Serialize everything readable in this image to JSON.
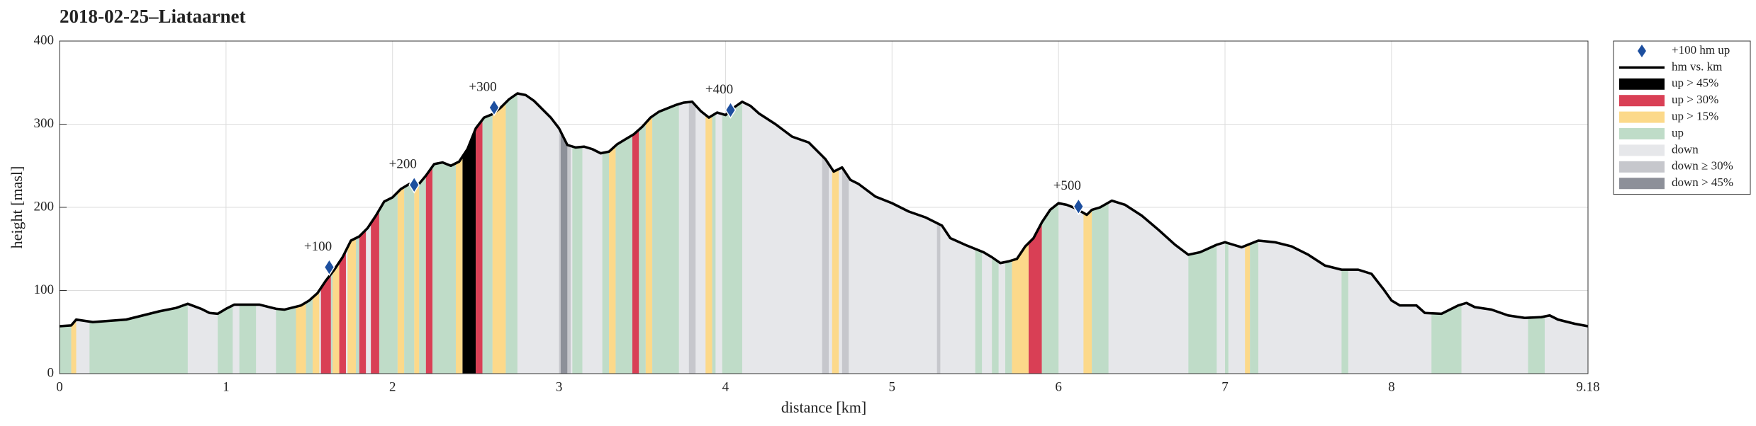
{
  "chart_data": {
    "type": "line",
    "title": "2018-02-25–Liataarnet",
    "xlabel": "distance [km]",
    "ylabel": "height [masl]",
    "xlim": [
      0,
      9.18
    ],
    "ylim": [
      0,
      400
    ],
    "xticks": [
      0,
      1,
      2,
      3,
      4,
      5,
      6,
      7,
      8,
      9.18
    ],
    "yticks": [
      0,
      100,
      200,
      300,
      400
    ],
    "grid": true,
    "legend": "outside-right",
    "line_name": "hm vs. km",
    "line_color": "#000000",
    "x": [
      0,
      0.07,
      0.1,
      0.2,
      0.4,
      0.5,
      0.6,
      0.7,
      0.77,
      0.85,
      0.9,
      0.95,
      1.0,
      1.05,
      1.15,
      1.2,
      1.3,
      1.35,
      1.45,
      1.5,
      1.55,
      1.6,
      1.65,
      1.7,
      1.75,
      1.8,
      1.85,
      1.9,
      1.95,
      2.0,
      2.05,
      2.1,
      2.15,
      2.2,
      2.25,
      2.3,
      2.35,
      2.4,
      2.45,
      2.5,
      2.55,
      2.6,
      2.65,
      2.7,
      2.75,
      2.8,
      2.85,
      2.9,
      2.95,
      3.0,
      3.05,
      3.1,
      3.15,
      3.2,
      3.25,
      3.3,
      3.35,
      3.4,
      3.45,
      3.5,
      3.55,
      3.6,
      3.7,
      3.75,
      3.8,
      3.85,
      3.9,
      3.95,
      4.0,
      4.05,
      4.1,
      4.15,
      4.2,
      4.3,
      4.4,
      4.5,
      4.6,
      4.65,
      4.7,
      4.75,
      4.8,
      4.9,
      5.0,
      5.1,
      5.2,
      5.3,
      5.35,
      5.45,
      5.55,
      5.6,
      5.65,
      5.7,
      5.75,
      5.8,
      5.85,
      5.9,
      5.95,
      6.0,
      6.05,
      6.1,
      6.17,
      6.2,
      6.25,
      6.32,
      6.4,
      6.5,
      6.6,
      6.7,
      6.78,
      6.85,
      6.95,
      7.0,
      7.05,
      7.1,
      7.2,
      7.3,
      7.4,
      7.5,
      7.6,
      7.7,
      7.8,
      7.88,
      7.95,
      8.0,
      8.05,
      8.15,
      8.2,
      8.3,
      8.4,
      8.45,
      8.5,
      8.6,
      8.7,
      8.8,
      8.9,
      8.95,
      9.0,
      9.1,
      9.18
    ],
    "values": [
      57,
      58,
      65,
      62,
      65,
      70,
      75,
      79,
      84,
      78,
      73,
      72,
      78,
      83,
      83,
      83,
      78,
      77,
      82,
      88,
      97,
      112,
      125,
      140,
      160,
      165,
      175,
      190,
      207,
      212,
      222,
      228,
      226,
      238,
      252,
      254,
      250,
      255,
      270,
      295,
      308,
      312,
      320,
      330,
      337,
      335,
      328,
      318,
      308,
      295,
      275,
      272,
      273,
      270,
      265,
      267,
      276,
      282,
      288,
      297,
      308,
      315,
      323,
      326,
      327,
      316,
      308,
      314,
      311,
      320,
      327,
      322,
      313,
      300,
      285,
      278,
      258,
      243,
      248,
      233,
      228,
      213,
      205,
      195,
      188,
      178,
      163,
      154,
      146,
      140,
      133,
      135,
      138,
      153,
      163,
      182,
      197,
      205,
      203,
      199,
      191,
      197,
      200,
      208,
      203,
      190,
      173,
      155,
      143,
      146,
      155,
      158,
      155,
      152,
      160,
      158,
      153,
      143,
      130,
      125,
      125,
      120,
      102,
      88,
      82,
      82,
      73,
      72,
      82,
      85,
      80,
      77,
      70,
      67,
      68,
      70,
      65,
      60,
      57
    ],
    "markers": {
      "name": "+100 hm up",
      "color": "#1d4f9f",
      "x": [
        1.62,
        2.13,
        2.61,
        4.03,
        6.12
      ],
      "values": [
        128,
        227,
        320,
        317,
        201
      ],
      "labels": [
        "+100",
        "+200",
        "+300",
        "+400",
        "+500"
      ]
    },
    "segments": [
      {
        "name": "up > 45%",
        "color": "#000000",
        "ranges": [
          [
            2.42,
            2.5
          ]
        ]
      },
      {
        "name": "up > 30%",
        "color": "#d93f55",
        "ranges": [
          [
            1.57,
            1.63
          ],
          [
            1.68,
            1.72
          ],
          [
            1.8,
            1.84
          ],
          [
            1.87,
            1.92
          ],
          [
            2.2,
            2.24
          ],
          [
            2.5,
            2.54
          ],
          [
            3.44,
            3.48
          ],
          [
            5.82,
            5.9
          ]
        ]
      },
      {
        "name": "up > 15%",
        "color": "#fcd98a",
        "ranges": [
          [
            0.07,
            0.1
          ],
          [
            1.42,
            1.48
          ],
          [
            1.52,
            1.56
          ],
          [
            1.64,
            1.68
          ],
          [
            1.73,
            1.78
          ],
          [
            2.03,
            2.07
          ],
          [
            2.13,
            2.16
          ],
          [
            2.38,
            2.42
          ],
          [
            2.6,
            2.68
          ],
          [
            3.3,
            3.34
          ],
          [
            3.52,
            3.56
          ],
          [
            3.88,
            3.92
          ],
          [
            4.64,
            4.68
          ],
          [
            5.72,
            5.82
          ],
          [
            6.15,
            6.2
          ],
          [
            7.12,
            7.15
          ]
        ]
      },
      {
        "name": "up",
        "color": "#bfdcc8",
        "ranges": [
          [
            0,
            0.07
          ],
          [
            0.18,
            0.77
          ],
          [
            0.95,
            1.04
          ],
          [
            1.08,
            1.18
          ],
          [
            1.3,
            1.42
          ],
          [
            1.48,
            1.52
          ],
          [
            1.63,
            1.64
          ],
          [
            1.78,
            1.8
          ],
          [
            1.92,
            2.03
          ],
          [
            2.07,
            2.13
          ],
          [
            2.16,
            2.2
          ],
          [
            2.24,
            2.38
          ],
          [
            2.54,
            2.6
          ],
          [
            2.68,
            2.75
          ],
          [
            3.08,
            3.14
          ],
          [
            3.26,
            3.3
          ],
          [
            3.34,
            3.44
          ],
          [
            3.48,
            3.52
          ],
          [
            3.56,
            3.72
          ],
          [
            3.92,
            3.94
          ],
          [
            3.98,
            4.1
          ],
          [
            5.5,
            5.54
          ],
          [
            5.6,
            5.64
          ],
          [
            5.68,
            5.72
          ],
          [
            5.9,
            6.0
          ],
          [
            6.2,
            6.3
          ],
          [
            6.78,
            6.95
          ],
          [
            7.0,
            7.02
          ],
          [
            7.15,
            7.2
          ],
          [
            7.7,
            7.74
          ],
          [
            8.24,
            8.42
          ],
          [
            8.82,
            8.92
          ]
        ]
      },
      {
        "name": "down",
        "color": "#e6e7ea",
        "ranges": [
          [
            0,
            9.18
          ]
        ]
      },
      {
        "name": "down ≥ 30%",
        "color": "#c6c7cc",
        "ranges": [
          [
            3.0,
            3.01
          ],
          [
            3.05,
            3.07
          ],
          [
            3.78,
            3.82
          ],
          [
            4.58,
            4.62
          ],
          [
            4.7,
            4.74
          ],
          [
            5.27,
            5.29
          ]
        ]
      },
      {
        "name": "down > 45%",
        "color": "#8d9099",
        "ranges": [
          [
            3.01,
            3.05
          ]
        ]
      }
    ]
  }
}
